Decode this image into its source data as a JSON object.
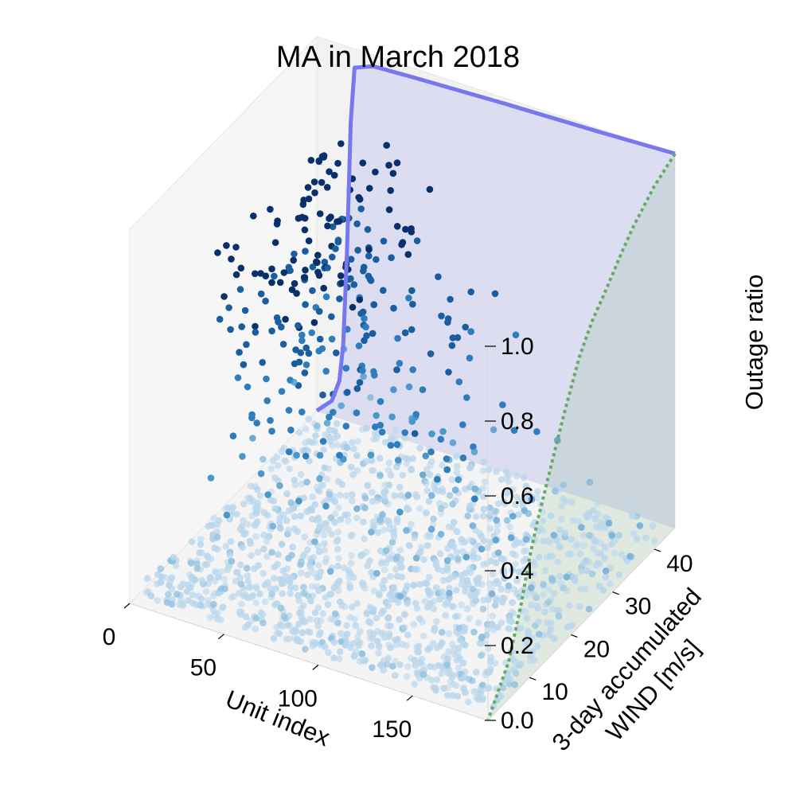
{
  "chart_data": {
    "type": "scatter",
    "projection": "3d",
    "title": "MA in March 2018",
    "xlabel": "Unit index",
    "ylabel_lines": [
      "3-day accumulated",
      "WIND [m/s]"
    ],
    "zlabel": "Outage ratio",
    "xlim": [
      0,
      190
    ],
    "ylim": [
      0,
      45
    ],
    "zlim": [
      0,
      1
    ],
    "x_ticks": [
      0,
      50,
      100,
      150
    ],
    "y_ticks": [
      10,
      20,
      30,
      40
    ],
    "z_ticks": [
      "0.0",
      "0.2",
      "0.4",
      "0.6",
      "0.8",
      "1.0"
    ],
    "grid": false,
    "colors": {
      "low_outage": "#b9d6ec",
      "mid_outage": "#4a98c9",
      "high_outage": "#08306b",
      "sorted_units_curve": "#7777ee",
      "wind_profile_curve": "#66aa66",
      "pane_fill": "#f2f2f2"
    },
    "series": [
      {
        "kind": "line",
        "plane": "y=max",
        "x": [
          0,
          8,
          12,
          14,
          16,
          18,
          20,
          30,
          50,
          100,
          150,
          190
        ],
        "z": [
          0.0,
          0.04,
          0.1,
          0.2,
          0.45,
          0.8,
          0.95,
          0.97,
          0.975,
          0.985,
          0.992,
          1.0
        ]
      },
      {
        "kind": "line",
        "plane": "x=max",
        "y": [
          45,
          40,
          35,
          32,
          30,
          28,
          25,
          22,
          20,
          18,
          15,
          12,
          10,
          8,
          5,
          0
        ],
        "z": [
          1.0,
          0.97,
          0.92,
          0.88,
          0.85,
          0.82,
          0.78,
          0.72,
          0.66,
          0.6,
          0.5,
          0.4,
          0.32,
          0.22,
          0.1,
          0.0
        ]
      },
      {
        "kind": "points",
        "description_units": "x=Unit index, y=WIND [m/s], z=Outage ratio",
        "points": [
          [
            8,
            40,
            0.74
          ],
          [
            10,
            41,
            0.73
          ],
          [
            12,
            39,
            0.7
          ],
          [
            14,
            40,
            0.76
          ],
          [
            16,
            42,
            0.69
          ],
          [
            18,
            38,
            0.72
          ],
          [
            11,
            43,
            0.68
          ],
          [
            15,
            44,
            0.75
          ],
          [
            20,
            41,
            0.74
          ],
          [
            13,
            37,
            0.71
          ],
          [
            12,
            36,
            0.64
          ],
          [
            15,
            39,
            0.62
          ],
          [
            18,
            34,
            0.67
          ],
          [
            22,
            38,
            0.63
          ],
          [
            25,
            40,
            0.61
          ],
          [
            28,
            42,
            0.58
          ],
          [
            10,
            35,
            0.55
          ],
          [
            16,
            31,
            0.57
          ],
          [
            20,
            33,
            0.52
          ],
          [
            24,
            36,
            0.54
          ],
          [
            27,
            30,
            0.5
          ],
          [
            30,
            37,
            0.48
          ],
          [
            33,
            39,
            0.46
          ],
          [
            12,
            30,
            0.44
          ],
          [
            17,
            28,
            0.46
          ],
          [
            22,
            27,
            0.42
          ],
          [
            26,
            32,
            0.4
          ],
          [
            32,
            34,
            0.43
          ],
          [
            36,
            36,
            0.38
          ],
          [
            40,
            38,
            0.41
          ],
          [
            18,
            42,
            0.52
          ],
          [
            24,
            44,
            0.48
          ],
          [
            34,
            42,
            0.45
          ],
          [
            30,
            25,
            0.36
          ],
          [
            38,
            30,
            0.34
          ],
          [
            42,
            33,
            0.32
          ],
          [
            46,
            35,
            0.31
          ],
          [
            50,
            36,
            0.29
          ],
          [
            14,
            22,
            0.35
          ],
          [
            20,
            24,
            0.3
          ],
          [
            26,
            22,
            0.28
          ],
          [
            34,
            26,
            0.27
          ],
          [
            44,
            28,
            0.25
          ],
          [
            52,
            31,
            0.24
          ],
          [
            58,
            33,
            0.22
          ],
          [
            62,
            35,
            0.2
          ],
          [
            70,
            37,
            0.19
          ],
          [
            40,
            22,
            0.21
          ],
          [
            48,
            24,
            0.2
          ],
          [
            56,
            26,
            0.18
          ],
          [
            64,
            29,
            0.17
          ],
          [
            74,
            31,
            0.15
          ],
          [
            82,
            34,
            0.14
          ],
          [
            90,
            36,
            0.12
          ],
          [
            8,
            28,
            0.52
          ],
          [
            36,
            40,
            0.5
          ],
          [
            44,
            41,
            0.44
          ],
          [
            28,
            36,
            0.56
          ],
          [
            32,
            28,
            0.37
          ],
          [
            60,
            40,
            0.22
          ],
          [
            66,
            38,
            0.16
          ],
          [
            78,
            40,
            0.13
          ],
          [
            86,
            28,
            0.11
          ],
          [
            94,
            30,
            0.1
          ],
          [
            100,
            33,
            0.09
          ],
          [
            106,
            35,
            0.08
          ],
          [
            110,
            25,
            0.08
          ],
          [
            118,
            29,
            0.07
          ],
          [
            124,
            32,
            0.06
          ],
          [
            130,
            36,
            0.05
          ],
          [
            20,
            18,
            0.22
          ],
          [
            30,
            18,
            0.19
          ],
          [
            38,
            16,
            0.17
          ],
          [
            50,
            18,
            0.15
          ],
          [
            60,
            20,
            0.13
          ],
          [
            72,
            22,
            0.12
          ],
          [
            84,
            20,
            0.1
          ],
          [
            96,
            23,
            0.09
          ],
          [
            108,
            20,
            0.07
          ],
          [
            120,
            22,
            0.06
          ],
          [
            136,
            27,
            0.05
          ],
          [
            142,
            31,
            0.05
          ],
          [
            150,
            34,
            0.04
          ],
          [
            158,
            37,
            0.04
          ],
          [
            166,
            40,
            0.03
          ],
          [
            172,
            38,
            0.03
          ],
          [
            178,
            42,
            0.02
          ],
          [
            10,
            15,
            0.18
          ],
          [
            25,
            12,
            0.14
          ],
          [
            45,
            14,
            0.12
          ],
          [
            65,
            15,
            0.1
          ],
          [
            80,
            12,
            0.08
          ],
          [
            98,
            15,
            0.07
          ],
          [
            115,
            13,
            0.06
          ],
          [
            132,
            17,
            0.05
          ],
          [
            148,
            20,
            0.04
          ],
          [
            160,
            24,
            0.03
          ],
          [
            170,
            28,
            0.03
          ],
          [
            182,
            32,
            0.02
          ],
          [
            186,
            36,
            0.02
          ]
        ]
      }
    ],
    "low_outage_cloud": {
      "x_range": [
        2,
        188
      ],
      "y_range": [
        2,
        44
      ],
      "z_range": [
        0.0,
        0.06
      ]
    }
  }
}
